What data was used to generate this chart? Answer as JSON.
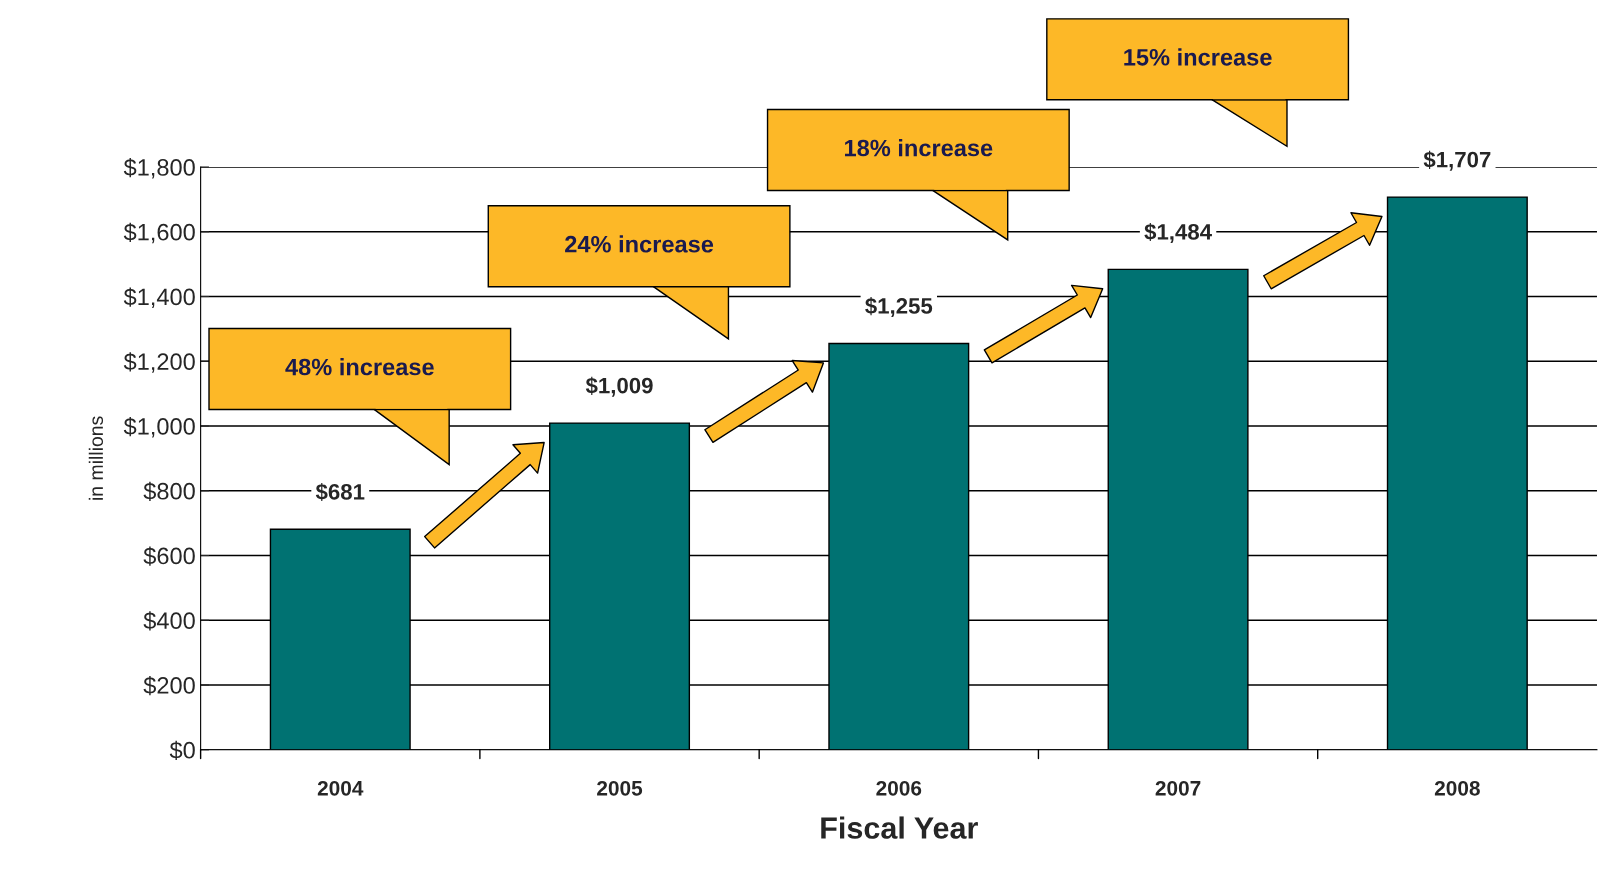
{
  "chart_data": {
    "type": "bar",
    "xlabel": "Fiscal Year",
    "ylabel": "in millions",
    "categories": [
      "2004",
      "2005",
      "2006",
      "2007",
      "2008"
    ],
    "values": [
      681,
      1009,
      1255,
      1484,
      1707
    ],
    "color": "#007272",
    "value_labels": [
      "$681",
      "$1,009",
      "$1,255",
      "$1,484",
      "$1,707"
    ],
    "ylim": [
      0,
      1800
    ],
    "yticks": [
      {
        "value": 0,
        "label": "$0"
      },
      {
        "value": 200,
        "label": "$200"
      },
      {
        "value": 400,
        "label": "$400"
      },
      {
        "value": 600,
        "label": "$600"
      },
      {
        "value": 800,
        "label": "$800"
      },
      {
        "value": 1000,
        "label": "$1,000"
      },
      {
        "value": 1200,
        "label": "$1,200"
      },
      {
        "value": 1400,
        "label": "$1,400"
      },
      {
        "value": 1600,
        "label": "$1,600"
      },
      {
        "value": 1800,
        "label": "$1,800"
      }
    ],
    "grid": "y",
    "annotations": [
      "48% increase",
      "24% increase",
      "18% increase",
      "15% increase"
    ]
  }
}
